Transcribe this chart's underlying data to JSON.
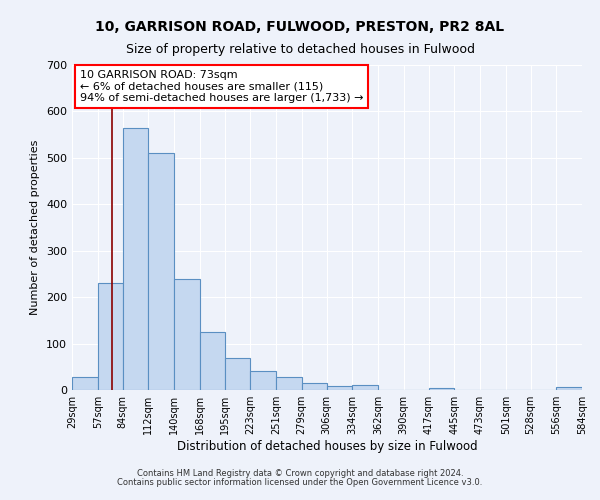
{
  "title1": "10, GARRISON ROAD, FULWOOD, PRESTON, PR2 8AL",
  "title2": "Size of property relative to detached houses in Fulwood",
  "xlabel": "Distribution of detached houses by size in Fulwood",
  "ylabel": "Number of detached properties",
  "bar_left_edges": [
    29,
    57,
    84,
    112,
    140,
    168,
    195,
    223,
    251,
    279,
    306,
    334,
    362,
    390,
    417,
    445,
    473,
    501,
    528,
    556
  ],
  "bar_heights": [
    28,
    230,
    565,
    510,
    240,
    125,
    70,
    42,
    27,
    15,
    8,
    10,
    1,
    0,
    5,
    0,
    0,
    0,
    0,
    7
  ],
  "bin_width": 28,
  "bar_color": "#c5d8f0",
  "bar_edge_color": "#5a8fc2",
  "tick_labels": [
    "29sqm",
    "57sqm",
    "84sqm",
    "112sqm",
    "140sqm",
    "168sqm",
    "195sqm",
    "223sqm",
    "251sqm",
    "279sqm",
    "306sqm",
    "334sqm",
    "362sqm",
    "390sqm",
    "417sqm",
    "445sqm",
    "473sqm",
    "501sqm",
    "528sqm",
    "556sqm",
    "584sqm"
  ],
  "ylim": [
    0,
    700
  ],
  "yticks": [
    0,
    100,
    200,
    300,
    400,
    500,
    600,
    700
  ],
  "red_line_x": 73,
  "annotation_title": "10 GARRISON ROAD: 73sqm",
  "annotation_line1": "← 6% of detached houses are smaller (115)",
  "annotation_line2": "94% of semi-detached houses are larger (1,733) →",
  "background_color": "#eef2fa",
  "grid_color": "#ffffff",
  "footnote1": "Contains HM Land Registry data © Crown copyright and database right 2024.",
  "footnote2": "Contains public sector information licensed under the Open Government Licence v3.0."
}
